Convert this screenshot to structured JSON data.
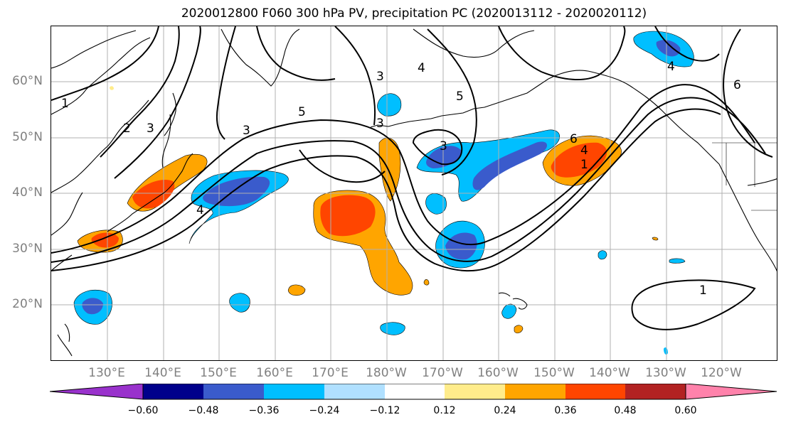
{
  "title": "2020012800 F060 300 hPa PV, precipitation PC (2020013112 - 2020020112)",
  "lat_labels": [
    "60°N",
    "50°N",
    "40°N",
    "30°N",
    "20°N"
  ],
  "lon_labels": [
    "130°E",
    "140°E",
    "150°E",
    "160°E",
    "170°E",
    "180°W",
    "170°W",
    "160°W",
    "150°W",
    "140°W",
    "130°W",
    "120°W"
  ],
  "contour_labels": [
    "1",
    "2",
    "3",
    "3",
    "5",
    "3",
    "4",
    "5",
    "3",
    "4",
    "3",
    "6",
    "4",
    "1",
    "6",
    "4",
    "1"
  ],
  "colorbar": {
    "ticks": [
      "−0.60",
      "−0.48",
      "−0.36",
      "−0.24",
      "−0.12",
      "0.12",
      "0.24",
      "0.36",
      "0.48",
      "0.60"
    ],
    "colors": [
      "#9932cc",
      "#00008b",
      "#3a5bcc",
      "#00bfff",
      "#b0e0ff",
      "#ffffff",
      "#ffec8b",
      "#ffa500",
      "#ff4500",
      "#b22222",
      "#ff82ab"
    ]
  },
  "colors": {
    "neg_strong": "#3a5bcc",
    "neg_mid": "#00bfff",
    "neg_weak": "#b0e0ff",
    "pos_weak": "#ffec8b",
    "pos_mid": "#ffa500",
    "pos_strong": "#ff4500",
    "pos_max": "#b22222",
    "contour": "#000000",
    "grid": "#b0b0b0"
  }
}
